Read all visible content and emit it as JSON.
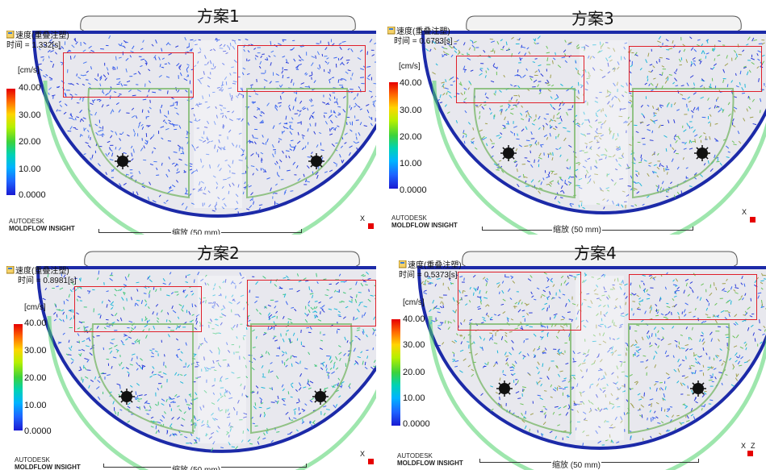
{
  "panels": [
    {
      "id": "p1",
      "title": "方案1",
      "result_label": "速度(重叠注塑)",
      "time_label": "时间 = 1.332[s]",
      "unit": "[cm/s]",
      "ticks": [
        "40.00",
        "30.00",
        "20.00",
        "10.00",
        "0.0000"
      ],
      "brand_top": "AUTODESK",
      "brand_bottom": "MOLDFLOW INSIGHT",
      "scale_label": "缩放 (50 mm)",
      "axis_x": "X",
      "axis_y": ""
    },
    {
      "id": "p2",
      "title": "方案3",
      "result_label": "速度(重叠注塑)",
      "time_label": "时间 = 0.6783[s]",
      "unit": "[cm/s]",
      "ticks": [
        "40.00",
        "30.00",
        "20.00",
        "10.00",
        "0.0000"
      ],
      "brand_top": "AUTODESK",
      "brand_bottom": "MOLDFLOW INSIGHT",
      "scale_label": "缩放 (50 mm)",
      "axis_x": "X",
      "axis_y": ""
    },
    {
      "id": "p3",
      "title": "方案2",
      "result_label": "速度(重叠注塑)",
      "time_label": "时间 = 0.8981[s]",
      "unit": "[cm/s]",
      "ticks": [
        "40.00",
        "30.00",
        "20.00",
        "10.00",
        "0.0000"
      ],
      "brand_top": "AUTODESK",
      "brand_bottom": "MOLDFLOW INSIGHT",
      "scale_label": "缩放 (50 mm)",
      "axis_x": "X",
      "axis_y": ""
    },
    {
      "id": "p4",
      "title": "方案4",
      "result_label": "速度(重叠注塑)",
      "time_label": "时间 = 0.5373[s]",
      "unit": "[cm/s]",
      "ticks": [
        "40.00",
        "30.00",
        "20.00",
        "10.00",
        "0.0000"
      ],
      "brand_top": "AUTODESK",
      "brand_bottom": "MOLDFLOW INSIGHT",
      "scale_label": "缩放 (50 mm)",
      "axis_x": "X",
      "axis_y": "Z"
    }
  ],
  "colors": {
    "highlight_box": "#e0202a",
    "scale_high": "#e60000",
    "scale_low": "#1a1ad2"
  },
  "icons": {
    "result": "result-tree-icon"
  }
}
